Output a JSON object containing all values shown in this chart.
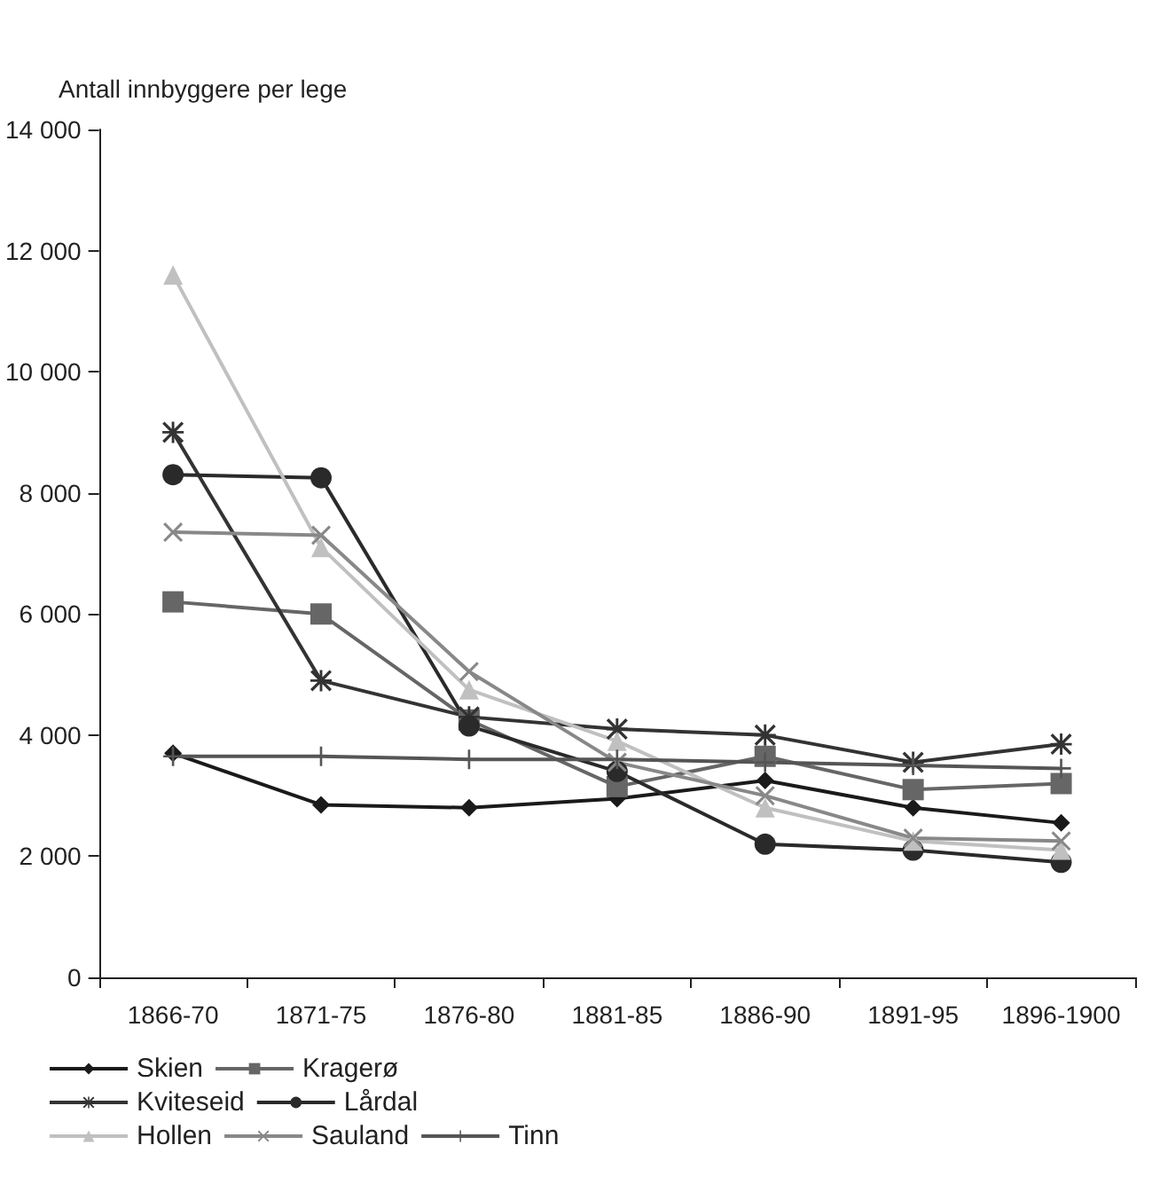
{
  "chart_data": {
    "type": "line",
    "title": "Antall innbyggere per lege",
    "categories": [
      "1866-70",
      "1871-75",
      "1876-80",
      "1881-85",
      "1886-90",
      "1891-95",
      "1896-1900"
    ],
    "series": [
      {
        "name": "Skien",
        "color": "#1a1a1a",
        "marker": "diamond",
        "values": [
          3700,
          2850,
          2800,
          2950,
          3250,
          2800,
          2550
        ]
      },
      {
        "name": "Kragerø",
        "color": "#666666",
        "marker": "square",
        "values": [
          6200,
          6000,
          4250,
          3150,
          3650,
          3100,
          3200
        ]
      },
      {
        "name": "Kviteseid",
        "color": "#333333",
        "marker": "star",
        "values": [
          9000,
          4900,
          4300,
          4100,
          4000,
          3550,
          3850
        ]
      },
      {
        "name": "Lårdal",
        "color": "#2a2a2a",
        "marker": "circle",
        "values": [
          8300,
          8250,
          4150,
          3400,
          2200,
          2100,
          1900
        ]
      },
      {
        "name": "Hollen",
        "color": "#c0c0c0",
        "marker": "triangle",
        "values": [
          11600,
          7100,
          4750,
          3900,
          2800,
          2250,
          2100
        ]
      },
      {
        "name": "Sauland",
        "color": "#888888",
        "marker": "cross",
        "values": [
          7350,
          7300,
          5050,
          3550,
          3000,
          2300,
          2250
        ]
      },
      {
        "name": "Tinn",
        "color": "#555555",
        "marker": "plus",
        "values": [
          3650,
          3650,
          3600,
          3600,
          3550,
          3500,
          3450
        ]
      }
    ],
    "ylim": [
      0,
      14000
    ],
    "yticks": [
      0,
      {
        "value": 2000,
        "label": "2 000"
      },
      {
        "value": 4000,
        "label": "4 000"
      },
      {
        "value": 6000,
        "label": "6 000"
      },
      {
        "value": 8000,
        "label": "8 000"
      },
      {
        "value": 10000,
        "label": "10 000"
      },
      {
        "value": 12000,
        "label": "12 000"
      },
      {
        "value": 14000,
        "label": "14 000"
      }
    ],
    "grid": false,
    "legend": "bottom",
    "line_style": "solid"
  }
}
